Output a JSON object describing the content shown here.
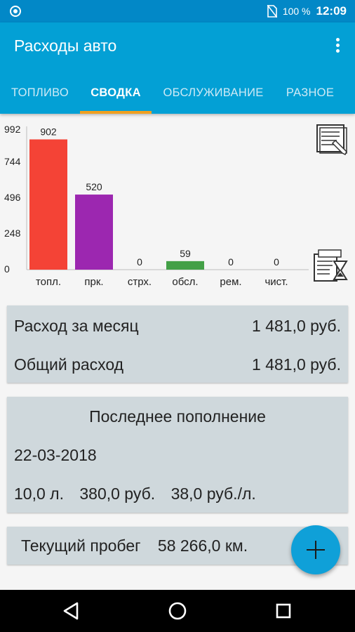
{
  "status_bar": {
    "battery_text": "100 %",
    "time": "12:09"
  },
  "app_bar": {
    "title": "Расходы авто"
  },
  "tabs": [
    {
      "label": "ТОПЛИВО",
      "active": false
    },
    {
      "label": "СВОДКА",
      "active": true
    },
    {
      "label": "ОБСЛУЖИВАНИЕ",
      "active": false
    },
    {
      "label": "РАЗНОЕ",
      "active": false
    }
  ],
  "chart_data": {
    "type": "bar",
    "categories": [
      "топл.",
      "прк.",
      "стрх.",
      "обсл.",
      "рем.",
      "чист."
    ],
    "values": [
      902,
      520,
      0,
      59,
      0,
      0
    ],
    "colors": [
      "#f44336",
      "#9c27b0",
      "#9e9e9e",
      "#43a047",
      "#9e9e9e",
      "#9e9e9e"
    ],
    "yticks": [
      0,
      248,
      496,
      744,
      992
    ],
    "ylim": [
      0,
      992
    ],
    "title": "",
    "xlabel": "",
    "ylabel": ""
  },
  "summary": {
    "month_label": "Расход за месяц",
    "month_value": "1 481,0 руб.",
    "total_label": "Общий расход",
    "total_value": "1 481,0 руб."
  },
  "last_refuel": {
    "title": "Последнее пополнение",
    "date": "22-03-2018",
    "volume": "10,0 л.",
    "cost": "380,0 руб.",
    "price": "38,0 руб./л."
  },
  "mileage": {
    "label": "Текущий пробег",
    "value": "58 266,0 км."
  },
  "icons": {
    "report": "report-edit-icon",
    "history": "document-hourglass-icon",
    "fab": "plus-icon"
  }
}
